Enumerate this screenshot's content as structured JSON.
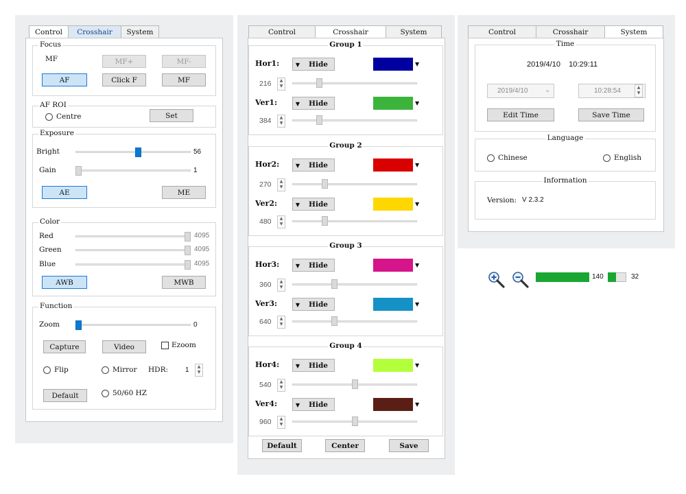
{
  "panel1": {
    "tabs": [
      "Control",
      "Crosshair",
      "System"
    ],
    "focus": {
      "title": "Focus",
      "mf_label": "MF",
      "mf_plus": "MF+",
      "mf_minus": "MF-",
      "af": "AF",
      "click_f": "Click F",
      "mf": "MF"
    },
    "af_roi": {
      "title": "AF ROI",
      "centre": "Centre",
      "set": "Set"
    },
    "exposure": {
      "title": "Exposure",
      "bright_label": "Bright",
      "bright_value": "56",
      "bright_level": 0.55,
      "gain_label": "Gain",
      "gain_value": "1",
      "gain_level": 0.0,
      "ae": "AE",
      "me": "ME"
    },
    "color": {
      "title": "Color",
      "red_label": "Red",
      "red_value": "4095",
      "green_label": "Green",
      "green_value": "4095",
      "blue_label": "Blue",
      "blue_value": "4095",
      "level": 1.0,
      "awb": "AWB",
      "mwb": "MWB"
    },
    "function": {
      "title": "Function",
      "zoom_label": "Zoom",
      "zoom_value": "0",
      "zoom_level": 0.0,
      "capture": "Capture",
      "video": "Video",
      "ezoom": "Ezoom",
      "flip": "Flip",
      "mirror": "Mirror",
      "hdr_label": "HDR:",
      "hdr_value": "1",
      "default": "Default",
      "hz": "50/60 HZ"
    }
  },
  "panel2": {
    "tabs": [
      "Control",
      "Crosshair",
      "System"
    ],
    "groups": [
      {
        "title": "Group 1",
        "hor_label": "Hor1:",
        "hor_mode": "Hide",
        "hor_color": "#0000a0",
        "hor_value": "216",
        "hor_level": 0.2,
        "ver_label": "Ver1:",
        "ver_mode": "Hide",
        "ver_color": "#3cb43c",
        "ver_value": "384",
        "ver_level": 0.2
      },
      {
        "title": "Group 2",
        "hor_label": "Hor2:",
        "hor_mode": "Hide",
        "hor_color": "#d90000",
        "hor_value": "270",
        "hor_level": 0.25,
        "ver_label": "Ver2:",
        "ver_mode": "Hide",
        "ver_color": "#ffd700",
        "ver_value": "480",
        "ver_level": 0.25
      },
      {
        "title": "Group 3",
        "hor_label": "Hor3:",
        "hor_mode": "Hide",
        "hor_color": "#d6158a",
        "hor_value": "360",
        "hor_level": 0.33,
        "ver_label": "Ver3:",
        "ver_mode": "Hide",
        "ver_color": "#1591c6",
        "ver_value": "640",
        "ver_level": 0.33
      },
      {
        "title": "Group 4",
        "hor_label": "Hor4:",
        "hor_mode": "Hide",
        "hor_color": "#b4ff3c",
        "hor_value": "540",
        "hor_level": 0.5,
        "ver_label": "Ver4:",
        "ver_mode": "Hide",
        "ver_color": "#5a1e14",
        "ver_value": "960",
        "ver_level": 0.5
      }
    ],
    "default": "Default",
    "center": "Center",
    "save": "Save"
  },
  "panel3": {
    "tabs": [
      "Control",
      "Crosshair",
      "System"
    ],
    "time": {
      "title": "Time",
      "datetime": "2019/4/10    10:29:11",
      "date_input": "2019/4/10",
      "time_input": "10:28:54",
      "edit": "Edit Time",
      "save": "Save Time"
    },
    "language": {
      "title": "Language",
      "chinese": "Chinese",
      "english": "English"
    },
    "info": {
      "title": "Information",
      "version_label": "Version:",
      "version_value": "V 2.3.2"
    }
  },
  "zoombar": {
    "zoom_in_icon": "magnifier-plus-icon",
    "zoom_out_icon": "magnifier-minus-icon",
    "value1": "140",
    "value2": "32",
    "level1": 1.0,
    "level2": 0.45,
    "bar_color": "#1aa632"
  }
}
